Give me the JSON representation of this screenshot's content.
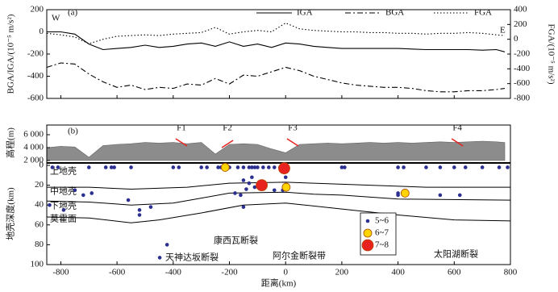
{
  "chart_data": [
    {
      "type": "line",
      "title": "(a)",
      "ylabel": "BGA/IGA/(10⁻⁵ m/s²)",
      "y2label": "FGA/(10⁻⁵ m/s²)",
      "annotations": [
        "W",
        "E"
      ],
      "xlim": [
        -850,
        800
      ],
      "xticks": [
        -800,
        -600,
        -400,
        -200,
        0,
        200,
        400,
        600,
        800
      ],
      "ylim": [
        -600,
        200
      ],
      "yticks": [
        -600,
        -400,
        -200,
        0,
        200
      ],
      "y2lim": [
        -800,
        400
      ],
      "y2ticks": [
        -800,
        -600,
        -400,
        -200,
        0,
        200,
        400
      ],
      "x": [
        -850,
        -800,
        -750,
        -700,
        -650,
        -600,
        -550,
        -500,
        -450,
        -400,
        -350,
        -300,
        -250,
        -200,
        -150,
        -100,
        -50,
        0,
        50,
        100,
        150,
        200,
        250,
        300,
        350,
        400,
        450,
        500,
        550,
        600,
        650,
        700,
        750,
        780
      ],
      "series": [
        {
          "name": "IGA",
          "color": "#000000",
          "dash": "solid",
          "values": [
            0,
            0,
            -20,
            -110,
            -160,
            -150,
            -140,
            -120,
            -140,
            -130,
            -110,
            -100,
            -130,
            -90,
            -130,
            -110,
            -140,
            -100,
            -110,
            -130,
            -140,
            -150,
            -150,
            -150,
            -150,
            -150,
            -155,
            -160,
            -160,
            -160,
            -160,
            -165,
            -160,
            -180
          ]
        },
        {
          "name": "BGA",
          "color": "#000000",
          "dash": "dashdot",
          "values": [
            -320,
            -280,
            -290,
            -380,
            -450,
            -500,
            -480,
            -520,
            -500,
            -510,
            -470,
            -480,
            -420,
            -470,
            -390,
            -400,
            -360,
            -320,
            -350,
            -400,
            -430,
            -460,
            -480,
            -490,
            -500,
            -500,
            -510,
            -530,
            -540,
            -540,
            -530,
            -530,
            -520,
            -510
          ]
        },
        {
          "name": "FGA",
          "color": "#000000",
          "dash": "dotted",
          "axis": "y2",
          "values": [
            80,
            60,
            30,
            -60,
            0,
            40,
            50,
            60,
            50,
            70,
            80,
            90,
            160,
            70,
            100,
            120,
            100,
            220,
            140,
            120,
            110,
            100,
            100,
            90,
            90,
            80,
            80,
            70,
            80,
            80,
            90,
            80,
            60,
            50
          ]
        }
      ]
    },
    {
      "type": "section",
      "title": "(b)",
      "xlabel": "距离(km)",
      "xlim": [
        -850,
        800
      ],
      "xticks": [
        -800,
        -600,
        -400,
        -200,
        0,
        200,
        400,
        600,
        800
      ],
      "elevation": {
        "ylabel": "高程(m)",
        "ylim": [
          2000,
          7500
        ],
        "yticks": [
          {
            "value": 2000,
            "label": "2 000"
          },
          {
            "value": 4000,
            "label": "4 000"
          },
          {
            "value": 6000,
            "label": "6 000"
          }
        ],
        "color": "#8c8c8c",
        "x": [
          -850,
          -800,
          -750,
          -700,
          -650,
          -600,
          -550,
          -500,
          -450,
          -400,
          -350,
          -300,
          -250,
          -200,
          -150,
          -100,
          -50,
          0,
          50,
          100,
          150,
          200,
          250,
          300,
          350,
          400,
          450,
          500,
          550,
          600,
          650,
          700,
          750,
          780
        ],
        "values": [
          4000,
          4200,
          4100,
          2500,
          4300,
          4500,
          4600,
          4800,
          4700,
          4800,
          4600,
          4800,
          3000,
          4500,
          4600,
          4500,
          3800,
          3200,
          4500,
          4600,
          4700,
          4600,
          4700,
          4800,
          4700,
          4800,
          4700,
          4800,
          4900,
          4800,
          4900,
          5000,
          4900,
          4800
        ]
      },
      "depth": {
        "ylabel": "地壳深度(km)",
        "ylim": [
          0,
          100
        ],
        "yticks": [
          0,
          20,
          40,
          60,
          80,
          100
        ],
        "boundaries": [
          {
            "x": [
              -850,
              -700,
              -550,
              -350,
              -200,
              0,
              100,
              300,
              500,
              800
            ],
            "values": [
              22,
              22,
              24,
              22,
              18,
              17,
              18,
              20,
              22,
              22
            ]
          },
          {
            "x": [
              -850,
              -700,
              -550,
              -400,
              -300,
              -200,
              0,
              100,
              200,
              400,
              800
            ],
            "values": [
              36,
              37,
              40,
              38,
              33,
              28,
              27,
              29,
              30,
              34,
              35
            ]
          },
          {
            "x": [
              -850,
              -700,
              -550,
              -450,
              -300,
              -150,
              0,
              200,
              400,
              600,
              800
            ],
            "values": [
              52,
              53,
              58,
              55,
              48,
              40,
              38,
              44,
              50,
              55,
              56
            ]
          }
        ]
      },
      "layers": [
        "上地壳",
        "中地壳",
        "下地壳",
        "莫霍面"
      ],
      "faults": [
        {
          "label": "F1",
          "x": -371
        },
        {
          "label": "F2",
          "x": -207
        },
        {
          "label": "F3",
          "x": 25
        },
        {
          "label": "F4",
          "x": 611
        }
      ],
      "fault_zones": [
        "天神达坂断裂",
        "康西瓦断裂",
        "阿尔金断裂带",
        "太阳湖断裂"
      ],
      "quakes": [
        {
          "name": "5~6",
          "color": "#2b2f8f",
          "x": [
            -840,
            -830,
            -810,
            -790,
            -750,
            -720,
            -700,
            -690,
            -640,
            -620,
            -610,
            -560,
            -550,
            -520,
            -520,
            -480,
            -448,
            -422,
            -400,
            -380,
            -300,
            -280,
            -240,
            -230,
            -200,
            -170,
            -150,
            -130,
            -120,
            -110,
            -100,
            -80,
            -60,
            -40,
            -20,
            -150,
            -130,
            -110,
            -90,
            -180,
            -160,
            -140,
            -120,
            -150,
            -40,
            -10,
            0,
            200,
            210,
            400,
            420,
            500,
            550,
            600,
            640,
            700,
            760,
            790,
            400,
            400,
            550,
            620
          ],
          "values": [
            40,
            2,
            2,
            45,
            25,
            30,
            2,
            28,
            2,
            2,
            2,
            35,
            2,
            45,
            50,
            42,
            93,
            80,
            2,
            2,
            2,
            2,
            2,
            2,
            2,
            2,
            2,
            2,
            2,
            2,
            2,
            2,
            2,
            2,
            2,
            15,
            18,
            22,
            20,
            28,
            30,
            24,
            12,
            42,
            25,
            25,
            12,
            2,
            2,
            2,
            2,
            2,
            2,
            2,
            2,
            2,
            2,
            2,
            28,
            30,
            30,
            30
          ]
        },
        {
          "name": "6~7",
          "color": "#ffd400",
          "x": [
            -215,
            2,
            425
          ],
          "values": [
            2,
            22,
            28
          ]
        },
        {
          "name": "7~8",
          "color": "#e8231f",
          "x": [
            -5,
            -85
          ],
          "values": [
            3,
            20
          ]
        }
      ]
    }
  ]
}
